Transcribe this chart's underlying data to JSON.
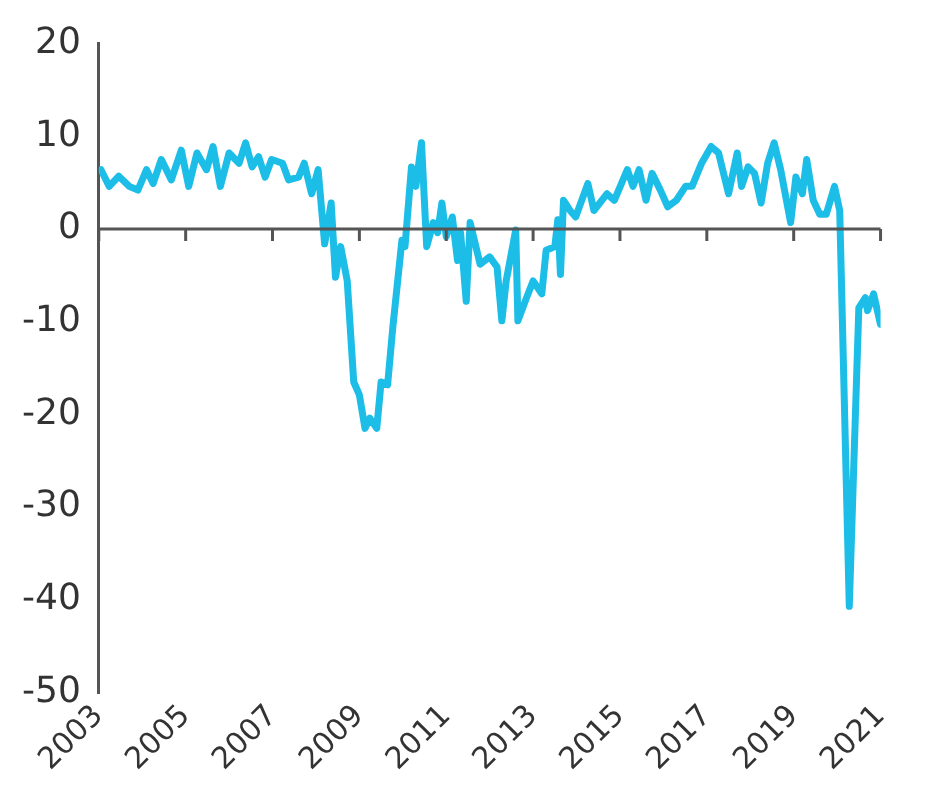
{
  "chart_data": {
    "type": "line",
    "x": [
      2003.05,
      2003.24,
      2003.46,
      2003.7,
      2003.9,
      2004.1,
      2004.25,
      2004.44,
      2004.67,
      2004.9,
      2005.07,
      2005.26,
      2005.48,
      2005.63,
      2005.8,
      2006.0,
      2006.23,
      2006.38,
      2006.53,
      2006.68,
      2006.83,
      2006.98,
      2007.23,
      2007.37,
      2007.6,
      2007.73,
      2007.9,
      2008.05,
      2008.2,
      2008.35,
      2008.45,
      2008.57,
      2008.72,
      2008.87,
      2009.0,
      2009.13,
      2009.24,
      2009.4,
      2009.5,
      2009.65,
      2009.77,
      2009.98,
      2010.05,
      2010.2,
      2010.3,
      2010.43,
      2010.55,
      2010.7,
      2010.8,
      2010.9,
      2011.0,
      2011.14,
      2011.26,
      2011.33,
      2011.46,
      2011.55,
      2011.78,
      2012.0,
      2012.17,
      2012.28,
      2012.38,
      2012.6,
      2012.65,
      2012.85,
      2013.0,
      2013.2,
      2013.3,
      2013.5,
      2013.57,
      2013.63,
      2013.7,
      2013.85,
      2013.98,
      2014.26,
      2014.4,
      2014.7,
      2014.87,
      2015.17,
      2015.3,
      2015.44,
      2015.6,
      2015.74,
      2015.93,
      2016.1,
      2016.3,
      2016.51,
      2016.66,
      2016.88,
      2017.1,
      2017.27,
      2017.5,
      2017.7,
      2017.8,
      2017.95,
      2018.1,
      2018.25,
      2018.4,
      2018.55,
      2018.7,
      2018.93,
      2019.05,
      2019.2,
      2019.3,
      2019.45,
      2019.6,
      2019.75,
      2019.94,
      2020.06,
      2020.28,
      2020.5,
      2020.65,
      2020.7,
      2020.84,
      2021.0
    ],
    "series": [
      {
        "color": "#1cbde6",
        "values": [
          6.4,
          4.6,
          5.7,
          4.6,
          4.2,
          6.4,
          4.9,
          7.5,
          5.3,
          8.5,
          4.6,
          8.2,
          6.4,
          8.9,
          4.6,
          8.2,
          7.1,
          9.3,
          6.7,
          7.8,
          5.6,
          7.5,
          7.1,
          5.3,
          5.6,
          7.1,
          3.8,
          6.4,
          -1.6,
          2.8,
          -5.2,
          -1.9,
          -5.6,
          -16.5,
          -17.9,
          -21.5,
          -20.4,
          -21.5,
          -16.5,
          -16.8,
          -10.6,
          -1.2,
          -1.9,
          6.7,
          4.6,
          9.3,
          -1.9,
          0.7,
          -0.4,
          2.8,
          -0.8,
          1.3,
          -3.4,
          -0.4,
          -7.8,
          0.7,
          -3.8,
          -3.0,
          -4.1,
          -9.9,
          -5.6,
          -0.1,
          -9.9,
          -7.4,
          -5.6,
          -7.0,
          -2.3,
          -1.9,
          1.0,
          -4.9,
          3.1,
          2.0,
          1.3,
          4.9,
          2.0,
          3.8,
          3.1,
          6.4,
          4.6,
          6.4,
          3.1,
          6.0,
          4.2,
          2.4,
          3.1,
          4.6,
          4.6,
          7.1,
          8.9,
          8.2,
          3.8,
          8.2,
          4.6,
          6.7,
          6.0,
          2.8,
          7.1,
          9.3,
          6.4,
          0.7,
          5.6,
          3.8,
          7.5,
          3.1,
          1.6,
          1.6,
          4.6,
          2.0,
          -40.7,
          -8.5,
          -7.4,
          -8.8,
          -7.0,
          -10.3
        ]
      }
    ],
    "xlim": [
      2003,
      2021
    ],
    "xticks": [
      2003,
      2005,
      2007,
      2009,
      2011,
      2013,
      2015,
      2017,
      2019,
      2021
    ],
    "ylim": [
      -50,
      20
    ],
    "yticks": [
      -50,
      -40,
      -30,
      -20,
      -10,
      0,
      10,
      20
    ],
    "ref_lines": [
      {
        "axis": "y",
        "value": 0
      }
    ],
    "grid": false,
    "legend": false,
    "marker": "none",
    "line_style": "solid"
  }
}
